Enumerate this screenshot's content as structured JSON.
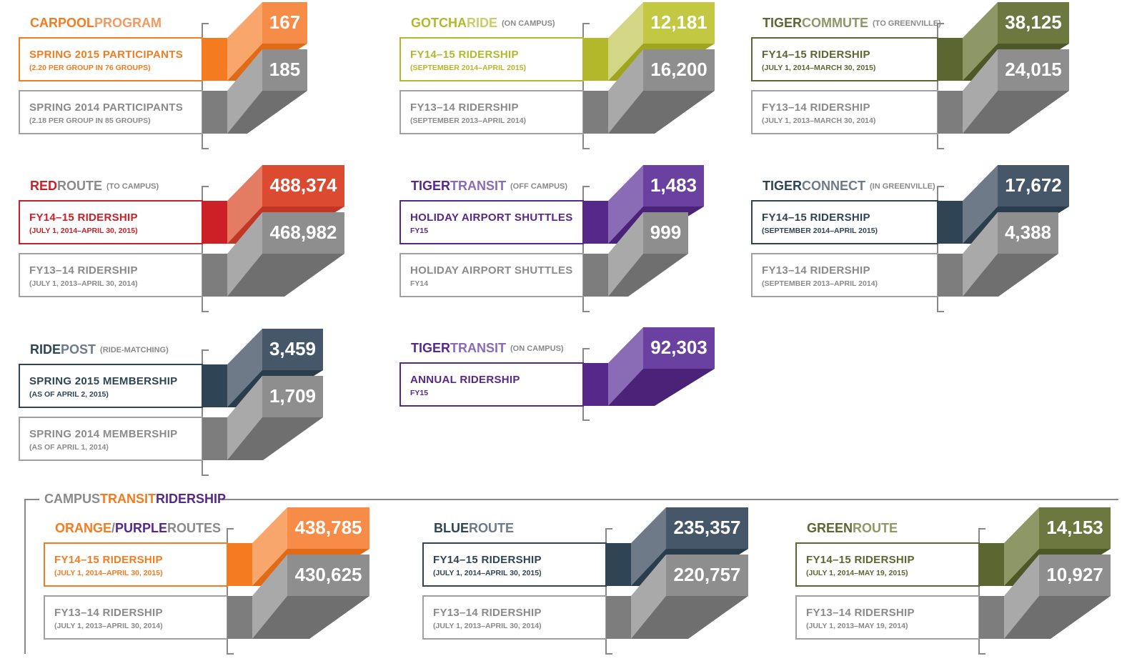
{
  "panels": [
    {
      "title": [
        "CARPOOL",
        "PROGRAM"
      ],
      "rows": [
        {
          "label": "SPRING 2015 PARTICIPANTS",
          "sublabel": "(2.20 PER GROUP IN 76 GROUPS)",
          "value": "167"
        },
        {
          "label": "SPRING 2014 PARTICIPANTS",
          "sublabel": "(2.18 PER GROUP IN 85 GROUPS)",
          "value": "185"
        }
      ]
    },
    {
      "title": [
        "GOTCHA",
        "RIDE"
      ],
      "note": "(ON CAMPUS)",
      "rows": [
        {
          "label": "FY14–15 RIDERSHIP",
          "sublabel": "(SEPTEMBER 2014–APRIL 2015)",
          "value": "12,181"
        },
        {
          "label": "FY13–14 RIDERSHIP",
          "sublabel": "(SEPTEMBER 2013–APRIL 2014)",
          "value": "16,200"
        }
      ]
    },
    {
      "title": [
        "TIGER",
        "COMMUTE"
      ],
      "note": "(TO GREENVILLE)",
      "rows": [
        {
          "label": "FY14–15 RIDERSHIP",
          "sublabel": "(JULY 1, 2014–MARCH 30, 2015)",
          "value": "38,125"
        },
        {
          "label": "FY13–14 RIDERSHIP",
          "sublabel": "(JULY 1, 2013–MARCH 30, 2014)",
          "value": "24,015"
        }
      ]
    },
    {
      "title": [
        "RED",
        "ROUTE"
      ],
      "note": "(TO CAMPUS)",
      "rows": [
        {
          "label": "FY14–15 RIDERSHIP",
          "sublabel": "(JULY 1, 2014–APRIL 30, 2015)",
          "value": "488,374"
        },
        {
          "label": "FY13–14 RIDERSHIP",
          "sublabel": "(JULY 1, 2013–APRIL 30, 2014)",
          "value": "468,982"
        }
      ]
    },
    {
      "title": [
        "TIGER",
        "TRANSIT"
      ],
      "note": "(OFF CAMPUS)",
      "rows": [
        {
          "label": "HOLIDAY AIRPORT SHUTTLES",
          "sublabel": "FY15",
          "value": "1,483"
        },
        {
          "label": "HOLIDAY AIRPORT SHUTTLES",
          "sublabel": "FY14",
          "value": "999"
        }
      ]
    },
    {
      "title": [
        "TIGER",
        "CONNECT"
      ],
      "note": "(IN GREENVILLE)",
      "rows": [
        {
          "label": "FY14–15 RIDERSHIP",
          "sublabel": "(SEPTEMBER 2014–APRIL 2015)",
          "value": "17,672"
        },
        {
          "label": "FY13–14 RIDERSHIP",
          "sublabel": "(SEPTEMBER 2013–APRIL 2014)",
          "value": "4,388"
        }
      ]
    },
    {
      "title": [
        "RIDE",
        "POST"
      ],
      "note": "(RIDE-MATCHING)",
      "rows": [
        {
          "label": "SPRING 2015 MEMBERSHIP",
          "sublabel": "(AS OF APRIL 2, 2015)",
          "value": "3,459"
        },
        {
          "label": "SPRING 2014 MEMBERSHIP",
          "sublabel": "(AS OF APRIL 1, 2014)",
          "value": "1,709"
        }
      ]
    },
    {
      "title": [
        "TIGER",
        "TRANSIT"
      ],
      "note": "(ON CAMPUS)",
      "rows": [
        {
          "label": "ANNUAL RIDERSHIP",
          "sublabel": "FY15",
          "value": "92,303"
        }
      ]
    }
  ],
  "campus": {
    "title": [
      "CAMPUS",
      "TRANSIT",
      "RIDERSHIP"
    ],
    "panels": [
      {
        "title": [
          "ORANGE",
          "/",
          "PURPLE",
          "ROUTES"
        ],
        "rows": [
          {
            "label": "FY14–15 RIDERSHIP",
            "sublabel": "(JULY 1, 2014–APRIL 30, 2015)",
            "value": "438,785"
          },
          {
            "label": "FY13–14 RIDERSHIP",
            "sublabel": "(JULY 1, 2013–APRIL 30, 2014)",
            "value": "430,625"
          }
        ]
      },
      {
        "title": [
          "BLUE",
          "ROUTE"
        ],
        "rows": [
          {
            "label": "FY14–15 RIDERSHIP",
            "sublabel": "(JULY 1, 2014–APRIL 30, 2015)",
            "value": "235,357"
          },
          {
            "label": "FY13–14 RIDERSHIP",
            "sublabel": "(JULY 1, 2013–APRIL 30, 2014)",
            "value": "220,757"
          }
        ]
      },
      {
        "title": [
          "GREEN",
          "ROUTE"
        ],
        "rows": [
          {
            "label": "FY14–15 RIDERSHIP",
            "sublabel": "(JULY 1, 2014–MAY 19, 2015)",
            "value": "14,153"
          },
          {
            "label": "FY13–14 RIDERSHIP",
            "sublabel": "(JULY 1, 2013–MAY 19, 2014)",
            "value": "10,927"
          }
        ]
      }
    ]
  }
}
